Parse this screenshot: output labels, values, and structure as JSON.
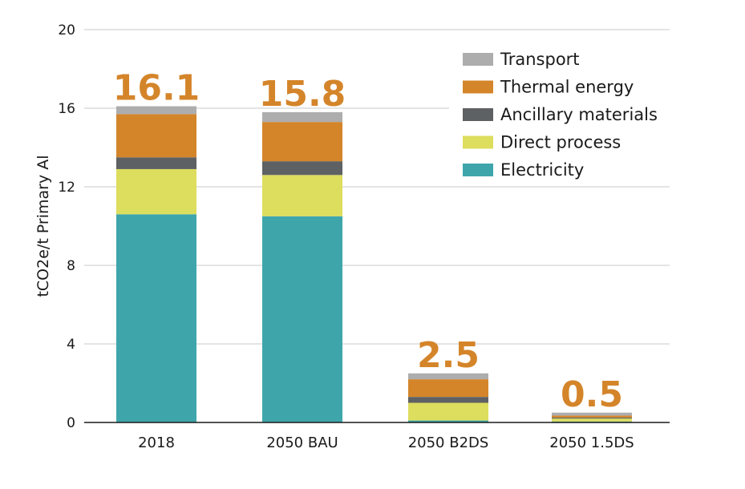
{
  "chart_data": {
    "type": "bar",
    "stacked": true,
    "categories": [
      "2018",
      "2050 BAU",
      "2050 B2DS",
      "2050 1.5DS"
    ],
    "series": [
      {
        "name": "Electricity",
        "color": "#3ea6ab",
        "values": [
          10.6,
          10.5,
          0.1,
          0.05
        ]
      },
      {
        "name": "Direct process",
        "color": "#dddd5e",
        "values": [
          2.3,
          2.1,
          0.9,
          0.15
        ]
      },
      {
        "name": "Ancillary materials",
        "color": "#5e6163",
        "values": [
          0.6,
          0.7,
          0.3,
          0.05
        ]
      },
      {
        "name": "Thermal energy",
        "color": "#d4852a",
        "values": [
          2.2,
          2.0,
          0.9,
          0.1
        ]
      },
      {
        "name": "Transport",
        "color": "#adadad",
        "values": [
          0.4,
          0.5,
          0.3,
          0.15
        ]
      }
    ],
    "totals": [
      "16.1",
      "15.8",
      "2.5",
      "0.5"
    ],
    "ylabel": "tCO2e/t Primary Al",
    "xlabel": "",
    "ylim": [
      0,
      20
    ],
    "yticks": [
      "0",
      "4",
      "8",
      "12",
      "16",
      "20"
    ],
    "grid": true,
    "legend_position": "top-right",
    "legend_order": [
      "Transport",
      "Thermal energy",
      "Ancillary materials",
      "Direct process",
      "Electricity"
    ]
  }
}
